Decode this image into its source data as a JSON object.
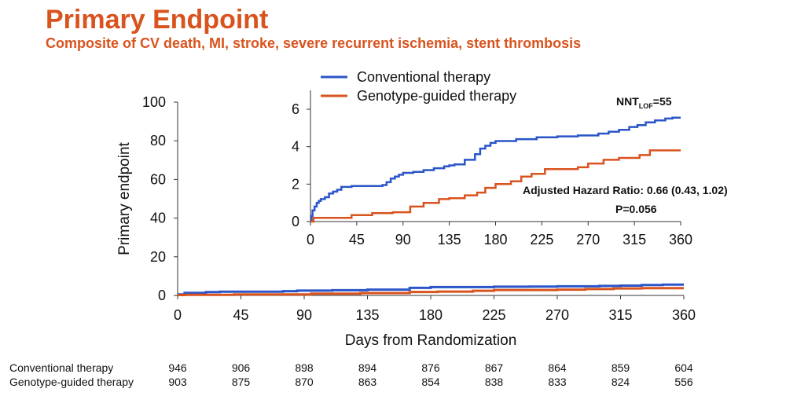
{
  "title": "Primary Endpoint",
  "subtitle": "Composite of CV death, MI, stroke, severe recurrent ischemia, stent thrombosis",
  "colors": {
    "conventional": "#2a55c8",
    "genotype": "#d9531e",
    "heading": "#d9531e"
  },
  "chart_data": [
    {
      "type": "line",
      "subtype": "step",
      "xlabel": "Days from Randomization",
      "ylabel": "Primary endpoint",
      "xlim": [
        0,
        360
      ],
      "ylim": [
        0,
        100
      ],
      "xticks": [
        "0",
        "45",
        "90",
        "135",
        "180",
        "225",
        "270",
        "315",
        "360"
      ],
      "yticks": [
        "0",
        "20",
        "40",
        "60",
        "80",
        "100"
      ],
      "series": [
        {
          "name": "Conventional therapy",
          "color": "#2a55c8",
          "x": [
            0,
            5,
            20,
            30,
            75,
            85,
            110,
            135,
            165,
            180,
            225,
            250,
            270,
            300,
            315,
            330,
            345,
            360
          ],
          "y": [
            0.5,
            1.3,
            1.7,
            1.9,
            2.2,
            2.5,
            2.7,
            3.0,
            3.9,
            4.3,
            4.5,
            4.6,
            4.7,
            4.9,
            5.1,
            5.4,
            5.6,
            5.6
          ]
        },
        {
          "name": "Genotype-guided therapy",
          "color": "#d9531e",
          "x": [
            0,
            5,
            40,
            95,
            130,
            165,
            185,
            210,
            225,
            270,
            290,
            310,
            330,
            360
          ],
          "y": [
            0.2,
            0.3,
            0.5,
            0.9,
            1.2,
            1.8,
            2.0,
            2.4,
            2.8,
            3.0,
            3.3,
            3.6,
            3.8,
            3.8
          ]
        }
      ]
    },
    {
      "type": "line",
      "subtype": "step",
      "role": "inset",
      "xlim": [
        0,
        360
      ],
      "ylim": [
        0,
        6
      ],
      "xticks": [
        "0",
        "45",
        "90",
        "135",
        "180",
        "225",
        "270",
        "315",
        "360"
      ],
      "yticks": [
        "0",
        "2",
        "4",
        "6"
      ],
      "legend_position": "top",
      "series": [
        {
          "name": "Conventional therapy",
          "color": "#2a55c8",
          "x": [
            0,
            1,
            2,
            4,
            6,
            8,
            10,
            14,
            18,
            22,
            26,
            30,
            40,
            60,
            70,
            74,
            78,
            82,
            86,
            90,
            100,
            110,
            120,
            130,
            135,
            140,
            150,
            160,
            165,
            170,
            175,
            180,
            200,
            220,
            240,
            260,
            280,
            290,
            300,
            310,
            318,
            326,
            335,
            345,
            352,
            360
          ],
          "y": [
            0,
            0.3,
            0.6,
            0.8,
            1.0,
            1.1,
            1.2,
            1.3,
            1.5,
            1.6,
            1.7,
            1.85,
            1.9,
            1.9,
            1.95,
            2.1,
            2.3,
            2.4,
            2.5,
            2.6,
            2.65,
            2.75,
            2.85,
            2.95,
            3.0,
            3.05,
            3.3,
            3.6,
            3.9,
            4.05,
            4.2,
            4.3,
            4.4,
            4.5,
            4.55,
            4.6,
            4.7,
            4.8,
            4.9,
            5.05,
            5.15,
            5.3,
            5.4,
            5.5,
            5.55,
            5.55
          ]
        },
        {
          "name": "Genotype-guided therapy",
          "color": "#d9531e",
          "x": [
            0,
            3,
            40,
            60,
            80,
            97,
            110,
            125,
            135,
            150,
            162,
            170,
            180,
            195,
            205,
            215,
            228,
            260,
            270,
            285,
            300,
            320,
            330,
            360
          ],
          "y": [
            0,
            0.2,
            0.35,
            0.45,
            0.5,
            0.8,
            1.0,
            1.2,
            1.25,
            1.4,
            1.55,
            1.8,
            2.0,
            2.15,
            2.4,
            2.55,
            2.8,
            2.9,
            3.1,
            3.3,
            3.4,
            3.55,
            3.8,
            3.8
          ]
        }
      ],
      "annotations": {
        "nnt_base": "NNT",
        "nnt_sub": "LOF",
        "nnt_value": "=55",
        "hazard_ratio": "Adjusted Hazard Ratio: 0.66 (0.43, 1.02)",
        "p_value": "P=0.056"
      }
    }
  ],
  "risk_table": {
    "rows": [
      {
        "label": "Conventional therapy",
        "values": [
          "946",
          "906",
          "898",
          "894",
          "876",
          "867",
          "864",
          "859",
          "604"
        ]
      },
      {
        "label": "Genotype-guided therapy",
        "values": [
          "903",
          "875",
          "870",
          "863",
          "854",
          "838",
          "833",
          "824",
          "556"
        ]
      }
    ]
  }
}
